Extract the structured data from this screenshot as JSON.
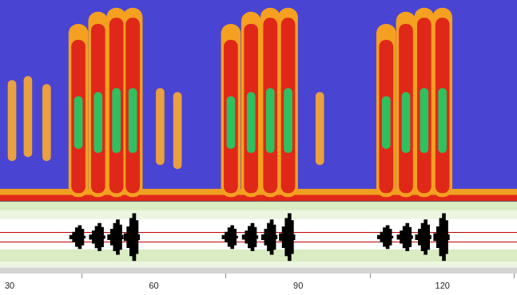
{
  "chart_data": [
    {
      "type": "spectrogram",
      "xlim": [
        28,
        135.5
      ],
      "ylim": [
        0,
        10
      ],
      "tick_labels": false,
      "grid": false,
      "series": [
        {
          "color": "#e8a040",
          "x": [
            30.5,
            33.8,
            37.7,
            61.3,
            64.9,
            94.5
          ],
          "values": [
            [
              2.0,
              6.0
            ],
            [
              2.2,
              6.2
            ],
            [
              2.0,
              5.8
            ],
            [
              1.8,
              5.6
            ],
            [
              1.6,
              5.4
            ],
            [
              1.8,
              5.4
            ]
          ]
        },
        {
          "color": "#f5a020",
          "x": [
            44.3,
            48.4,
            52.2,
            55.6,
            76.0,
            80.2,
            84.2,
            87.9,
            108.3,
            112.4,
            116.2,
            120.0
          ],
          "values": [
            [
              0.2,
              8.8
            ],
            [
              0.2,
              9.4
            ],
            [
              0.2,
              9.6
            ],
            [
              0.2,
              9.6
            ],
            [
              0.2,
              8.8
            ],
            [
              0.2,
              9.4
            ],
            [
              0.2,
              9.6
            ],
            [
              0.2,
              9.6
            ],
            [
              0.2,
              8.8
            ],
            [
              0.2,
              9.4
            ],
            [
              0.2,
              9.6
            ],
            [
              0.2,
              9.6
            ]
          ]
        },
        {
          "color": "#e02818",
          "x": [
            44.3,
            48.4,
            52.2,
            55.6,
            76.0,
            80.2,
            84.2,
            87.9,
            108.3,
            112.4,
            116.2,
            120.0
          ],
          "values": [
            [
              0.4,
              8.0
            ],
            [
              0.4,
              8.8
            ],
            [
              0.4,
              9.1
            ],
            [
              0.4,
              9.1
            ],
            [
              0.4,
              8.0
            ],
            [
              0.4,
              8.8
            ],
            [
              0.4,
              9.1
            ],
            [
              0.4,
              9.1
            ],
            [
              0.4,
              8.0
            ],
            [
              0.4,
              8.8
            ],
            [
              0.4,
              9.1
            ],
            [
              0.4,
              9.1
            ]
          ]
        },
        {
          "color": "#2fc060",
          "x": [
            44.3,
            48.4,
            52.2,
            55.6,
            76.0,
            80.2,
            84.2,
            87.9,
            108.3,
            112.4,
            116.2,
            120.0
          ],
          "values": [
            [
              2.6,
              5.2
            ],
            [
              2.4,
              5.4
            ],
            [
              2.4,
              5.6
            ],
            [
              2.4,
              5.6
            ],
            [
              2.6,
              5.2
            ],
            [
              2.4,
              5.4
            ],
            [
              2.4,
              5.6
            ],
            [
              2.4,
              5.6
            ],
            [
              2.6,
              5.2
            ],
            [
              2.4,
              5.4
            ],
            [
              2.4,
              5.6
            ],
            [
              2.4,
              5.6
            ]
          ]
        }
      ]
    },
    {
      "type": "waveform",
      "xlim": [
        28,
        135.5
      ],
      "xticks": [
        30,
        60,
        90,
        120
      ],
      "ylim": [
        -1,
        1
      ],
      "tick_labels": "x",
      "grid": true,
      "color": "#000000",
      "x": [
        42.8,
        43.4,
        44.0,
        44.6,
        45.1,
        45.4,
        46.9,
        47.5,
        48.1,
        48.7,
        49.2,
        49.5,
        50.7,
        51.3,
        51.9,
        52.5,
        53.0,
        53.3,
        54.1,
        54.7,
        55.3,
        55.9,
        56.4,
        56.7,
        74.5,
        75.1,
        75.7,
        76.3,
        76.8,
        77.1,
        78.7,
        79.3,
        79.9,
        80.5,
        81.0,
        81.3,
        82.7,
        83.3,
        83.9,
        84.5,
        85.0,
        85.3,
        86.4,
        87.0,
        87.6,
        88.2,
        88.7,
        89.0,
        106.8,
        107.4,
        108.0,
        108.6,
        109.1,
        109.4,
        110.9,
        111.5,
        112.1,
        112.7,
        113.2,
        113.5,
        114.7,
        115.3,
        115.9,
        116.5,
        117.0,
        117.3,
        118.5,
        119.1,
        119.7,
        120.3,
        120.8,
        121.1
      ],
      "values": [
        0.05,
        0.14,
        0.26,
        0.32,
        0.22,
        0.03,
        0.06,
        0.17,
        0.3,
        0.38,
        0.27,
        0.04,
        0.07,
        0.22,
        0.38,
        0.48,
        0.34,
        0.05,
        0.1,
        0.29,
        0.52,
        0.65,
        0.46,
        0.07,
        0.05,
        0.14,
        0.26,
        0.32,
        0.22,
        0.03,
        0.06,
        0.17,
        0.3,
        0.38,
        0.27,
        0.04,
        0.07,
        0.22,
        0.38,
        0.48,
        0.34,
        0.05,
        0.1,
        0.29,
        0.52,
        0.65,
        0.46,
        0.07,
        0.05,
        0.14,
        0.26,
        0.32,
        0.22,
        0.03,
        0.06,
        0.17,
        0.3,
        0.38,
        0.27,
        0.04,
        0.07,
        0.22,
        0.38,
        0.48,
        0.34,
        0.05,
        0.1,
        0.29,
        0.52,
        0.65,
        0.46,
        0.07
      ]
    }
  ]
}
